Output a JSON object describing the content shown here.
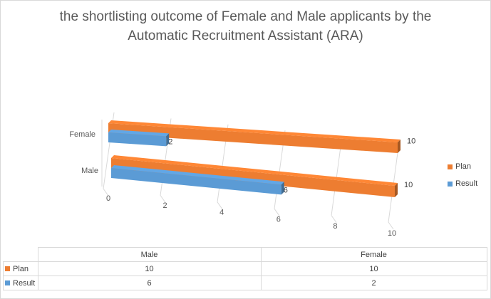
{
  "title_line1": "the shortlisting outcome of Female and Male applicants by the",
  "title_line2": "Automatic Recruitment Assistant (ARA)",
  "chart_data": {
    "type": "bar",
    "orientation": "horizontal",
    "style": "3d-perspective",
    "title": "the shortlisting outcome of Female and Male applicants by the Automatic Recruitment Assistant (ARA)",
    "categories": [
      "Male",
      "Female"
    ],
    "series": [
      {
        "name": "Plan",
        "color": "#ED7D31",
        "values": [
          10,
          10
        ]
      },
      {
        "name": "Result",
        "color": "#5B9BD5",
        "values": [
          6,
          2
        ]
      }
    ],
    "xlim": [
      0,
      10
    ],
    "x_ticks": [
      "0",
      "2",
      "4",
      "6",
      "8",
      "10"
    ],
    "grid": true,
    "legend_position": "right",
    "data_table": true
  },
  "legend": [
    {
      "label": "Plan",
      "color": "#ED7D31"
    },
    {
      "label": "Result",
      "color": "#5B9BD5"
    }
  ],
  "table": {
    "headers": [
      "Male",
      "Female"
    ],
    "rows": [
      {
        "label": "Plan",
        "color": "#ED7D31",
        "values": [
          "10",
          "10"
        ]
      },
      {
        "label": "Result",
        "color": "#5B9BD5",
        "values": [
          "6",
          "2"
        ]
      }
    ]
  }
}
